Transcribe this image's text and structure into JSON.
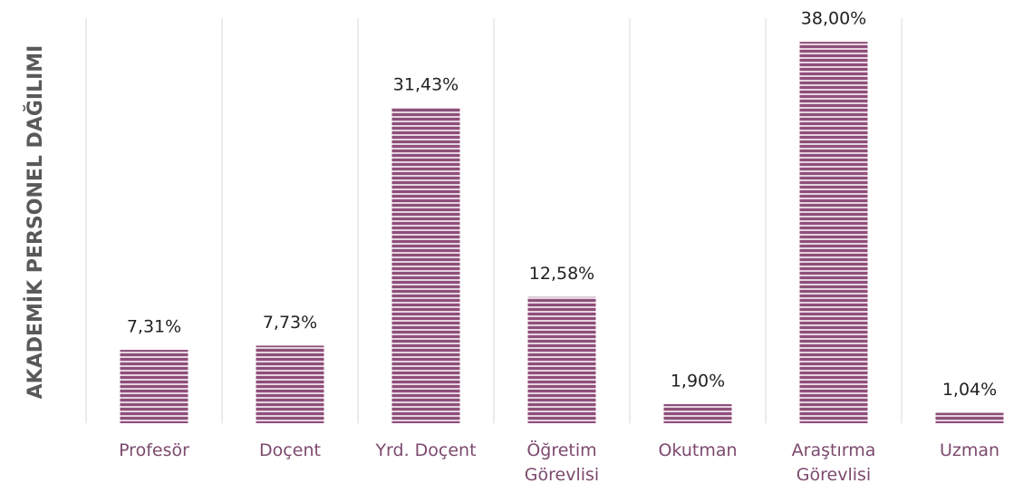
{
  "chart_data": {
    "type": "bar",
    "y_label": "AKADEMİK PERSONEL DAĞILIMI",
    "categories": [
      "Profesör",
      "Doçent",
      "Yrd. Doçent",
      "Öğretim\nGörevlisi",
      "Okutman",
      "Araştırma\nGörevlisi",
      "Uzman"
    ],
    "values": [
      7.31,
      7.73,
      31.43,
      12.58,
      1.9,
      38.0,
      1.04
    ],
    "value_labels": [
      "7,31%",
      "7,73%",
      "31,43%",
      "12,58%",
      "1,90%",
      "38,00%",
      "1,04%"
    ],
    "color": "#8e4f7a",
    "ylim": [
      0,
      40
    ]
  }
}
